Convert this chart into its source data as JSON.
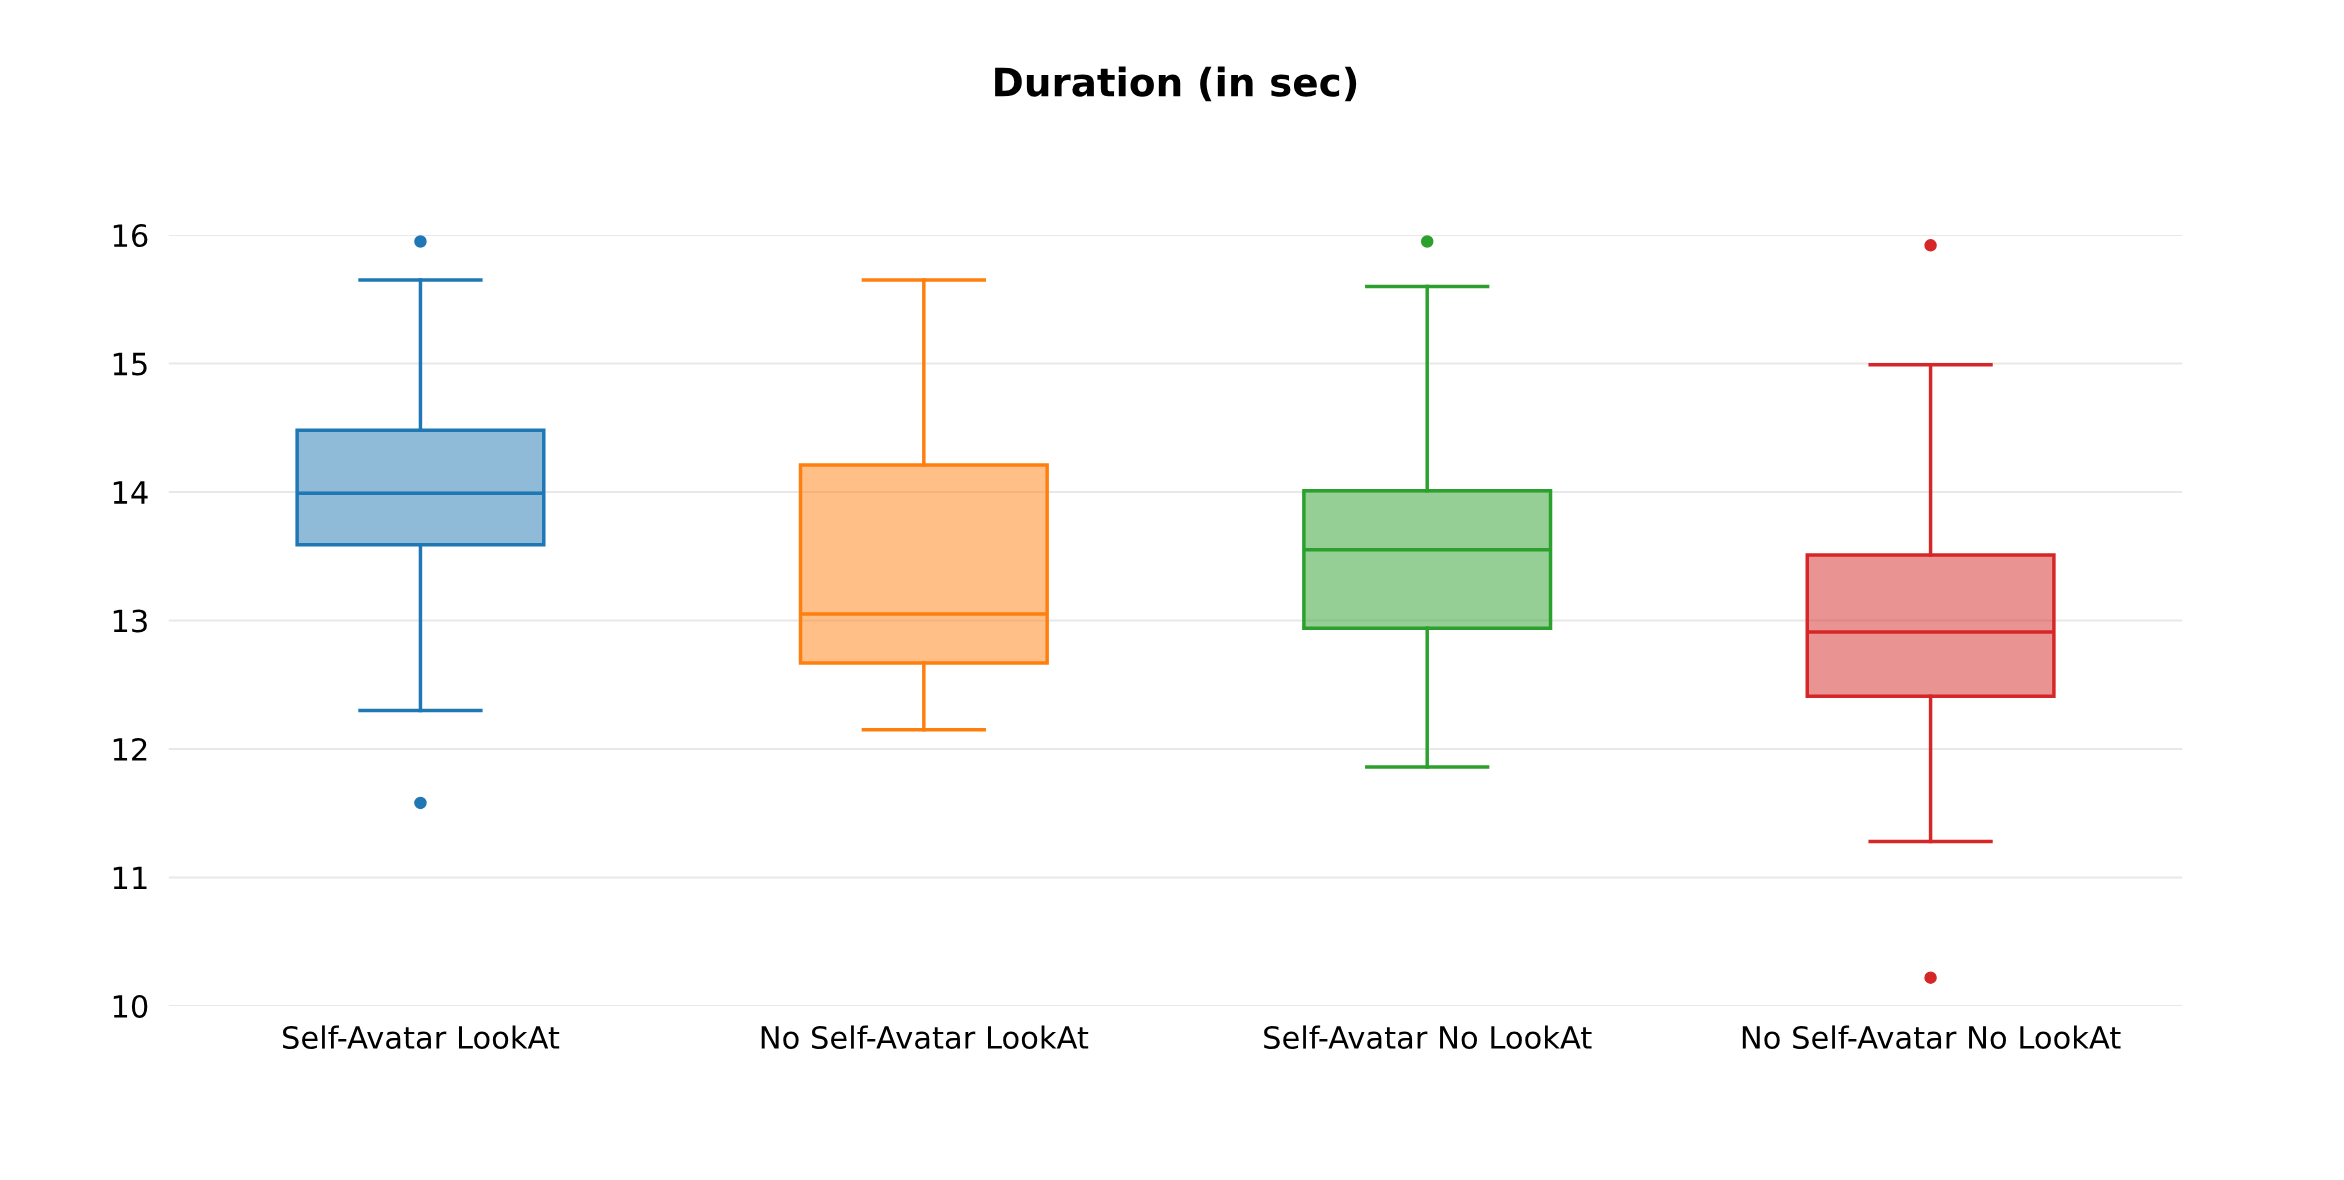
{
  "chart_data": {
    "type": "box",
    "title": "Duration (in sec)",
    "categories": [
      "Self-Avatar LookAt",
      "No Self-Avatar LookAt",
      "Self-Avatar No LookAt",
      "No Self-Avatar No LookAt"
    ],
    "colors": [
      "#1f77b4",
      "#ff7f0e",
      "#2ca02c",
      "#d62728"
    ],
    "boxes": [
      {
        "low": 12.3,
        "q1": 13.59,
        "median": 13.99,
        "q3": 14.48,
        "high": 15.65,
        "outliers": [
          15.95,
          11.58
        ]
      },
      {
        "low": 12.15,
        "q1": 12.67,
        "median": 13.05,
        "q3": 14.21,
        "high": 15.65
      },
      {
        "low": 11.86,
        "q1": 12.94,
        "median": 13.55,
        "q3": 14.01,
        "high": 15.6,
        "outliers": [
          15.95
        ]
      },
      {
        "low": 11.28,
        "q1": 12.41,
        "median": 12.91,
        "q3": 13.51,
        "high": 14.99,
        "outliers": [
          15.92,
          10.22
        ]
      }
    ],
    "ylim": [
      10,
      16
    ],
    "yticks": [
      10,
      11,
      12,
      13,
      14,
      15,
      16
    ],
    "grid": "y",
    "marker": "circle"
  }
}
